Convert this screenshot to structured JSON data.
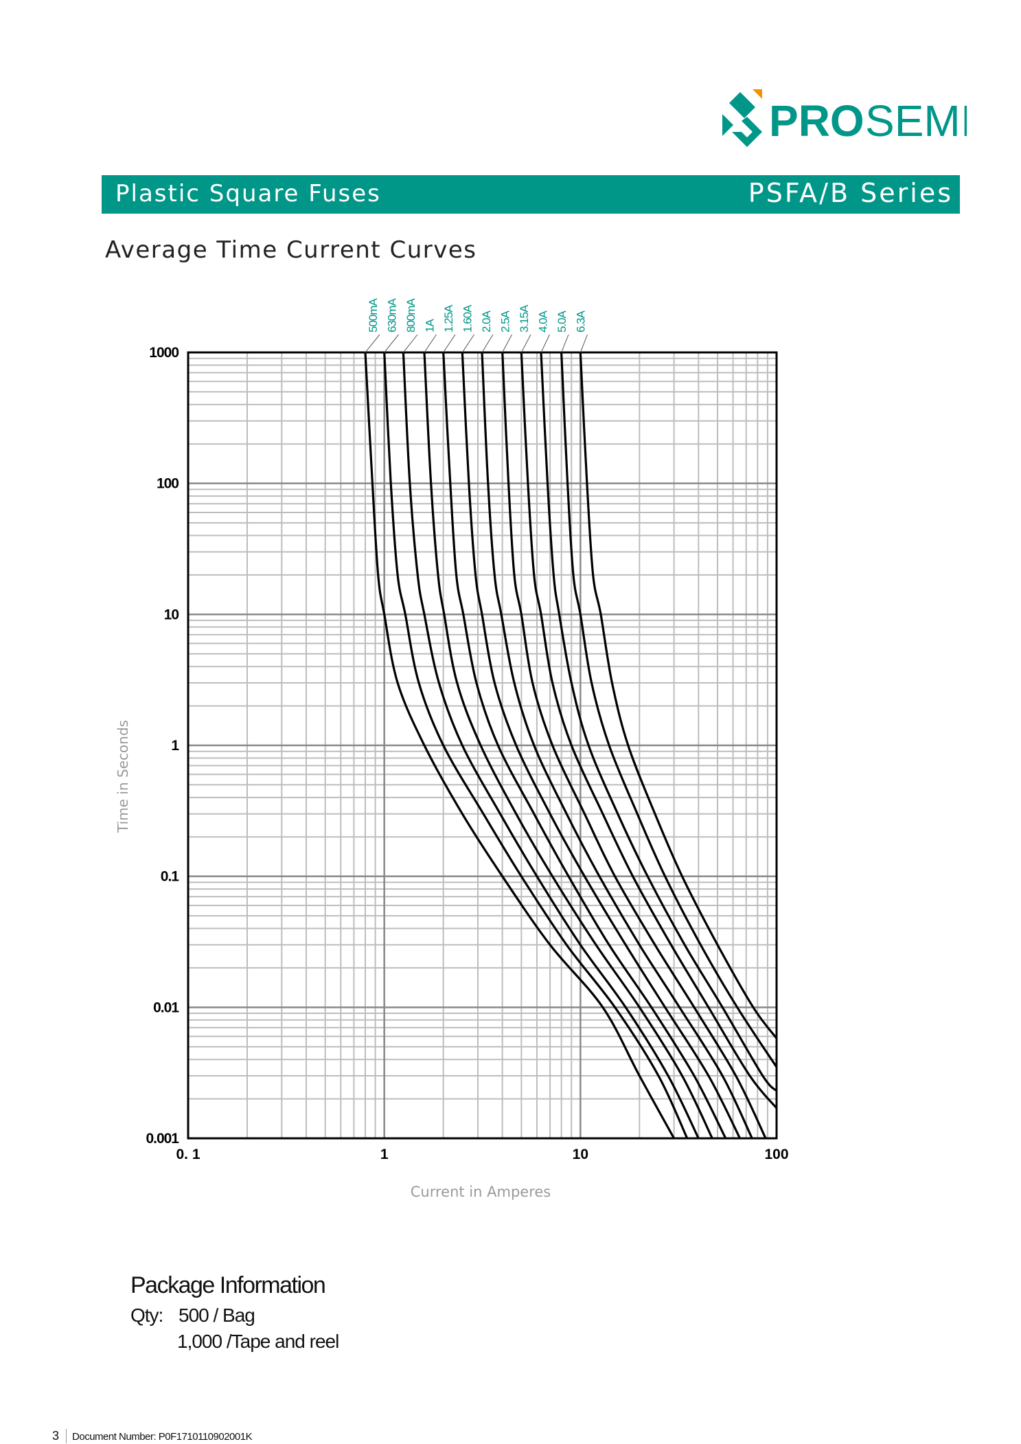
{
  "brand": {
    "name_bold": "PRO",
    "name_light": "SEMI",
    "color": "#009688",
    "accent": "#f39200"
  },
  "header": {
    "left": "Plastic Square Fuses",
    "right": "PSFA/B Series"
  },
  "chart_title": "Average Time Current Curves",
  "chart_data": {
    "type": "line",
    "xlabel": "Current in Amperes",
    "ylabel": "Time in Seconds",
    "x_scale": "log",
    "y_scale": "log",
    "xlim": [
      0.1,
      100
    ],
    "ylim": [
      0.001,
      1000
    ],
    "x_ticks": [
      {
        "value": 0.1,
        "label": "0. 1"
      },
      {
        "value": 1,
        "label": "1"
      },
      {
        "value": 10,
        "label": "10"
      },
      {
        "value": 100,
        "label": "100"
      }
    ],
    "y_ticks": [
      {
        "value": 1000,
        "label": "1000"
      },
      {
        "value": 100,
        "label": "100"
      },
      {
        "value": 10,
        "label": "10"
      },
      {
        "value": 1,
        "label": "1"
      },
      {
        "value": 0.1,
        "label": "0.1"
      },
      {
        "value": 0.01,
        "label": "0.01"
      },
      {
        "value": 0.001,
        "label": "0.001"
      }
    ],
    "grid": true,
    "line_color": "#000000",
    "label_color": "#009688",
    "series": [
      {
        "name": "500mA",
        "points": [
          [
            0.8,
            1000
          ],
          [
            0.87,
            100
          ],
          [
            0.93,
            20
          ],
          [
            1.0,
            10
          ],
          [
            1.17,
            3
          ],
          [
            1.6,
            1
          ],
          [
            2.5,
            0.3
          ],
          [
            4.0,
            0.1
          ],
          [
            7.0,
            0.03
          ],
          [
            13,
            0.01
          ],
          [
            20,
            0.003
          ],
          [
            30,
            0.001
          ]
        ]
      },
      {
        "name": "630mA",
        "points": [
          [
            1.0,
            1000
          ],
          [
            1.08,
            100
          ],
          [
            1.17,
            20
          ],
          [
            1.28,
            10
          ],
          [
            1.5,
            3
          ],
          [
            2.0,
            1
          ],
          [
            3.2,
            0.3
          ],
          [
            5.0,
            0.1
          ],
          [
            8.5,
            0.03
          ],
          [
            15,
            0.01
          ],
          [
            25,
            0.003
          ],
          [
            35,
            0.001
          ]
        ]
      },
      {
        "name": "800mA",
        "points": [
          [
            1.25,
            1000
          ],
          [
            1.35,
            100
          ],
          [
            1.48,
            20
          ],
          [
            1.6,
            10
          ],
          [
            1.9,
            3
          ],
          [
            2.5,
            1
          ],
          [
            3.9,
            0.3
          ],
          [
            6.0,
            0.1
          ],
          [
            10,
            0.03
          ],
          [
            17,
            0.01
          ],
          [
            28,
            0.003
          ],
          [
            40,
            0.001
          ]
        ]
      },
      {
        "name": "1A",
        "points": [
          [
            1.6,
            1000
          ],
          [
            1.73,
            100
          ],
          [
            1.88,
            20
          ],
          [
            2.02,
            10
          ],
          [
            2.35,
            3
          ],
          [
            3.1,
            1
          ],
          [
            4.7,
            0.3
          ],
          [
            7.2,
            0.1
          ],
          [
            12,
            0.03
          ],
          [
            20,
            0.01
          ],
          [
            33,
            0.003
          ],
          [
            47,
            0.001
          ]
        ]
      },
      {
        "name": "1.25A",
        "points": [
          [
            2.0,
            1000
          ],
          [
            2.17,
            100
          ],
          [
            2.33,
            20
          ],
          [
            2.53,
            10
          ],
          [
            2.95,
            3
          ],
          [
            3.8,
            1
          ],
          [
            5.8,
            0.3
          ],
          [
            8.7,
            0.1
          ],
          [
            14,
            0.03
          ],
          [
            23,
            0.01
          ],
          [
            38,
            0.003
          ],
          [
            55,
            0.001
          ]
        ]
      },
      {
        "name": "1.60A",
        "points": [
          [
            2.5,
            1000
          ],
          [
            2.7,
            100
          ],
          [
            2.92,
            20
          ],
          [
            3.15,
            10
          ],
          [
            3.65,
            3
          ],
          [
            4.7,
            1
          ],
          [
            7.0,
            0.3
          ],
          [
            10.5,
            0.1
          ],
          [
            17,
            0.03
          ],
          [
            27,
            0.01
          ],
          [
            45,
            0.003
          ],
          [
            65,
            0.001
          ]
        ]
      },
      {
        "name": "2.0A",
        "points": [
          [
            3.15,
            1000
          ],
          [
            3.38,
            100
          ],
          [
            3.65,
            20
          ],
          [
            3.95,
            10
          ],
          [
            4.6,
            3
          ],
          [
            5.8,
            1
          ],
          [
            8.5,
            0.3
          ],
          [
            12.5,
            0.1
          ],
          [
            20,
            0.03
          ],
          [
            32,
            0.01
          ],
          [
            53,
            0.003
          ],
          [
            75,
            0.001
          ]
        ]
      },
      {
        "name": "2.5A",
        "points": [
          [
            4.0,
            1000
          ],
          [
            4.3,
            100
          ],
          [
            4.6,
            20
          ],
          [
            5.0,
            10
          ],
          [
            5.7,
            3
          ],
          [
            7.2,
            1
          ],
          [
            10.5,
            0.3
          ],
          [
            15,
            0.1
          ],
          [
            24,
            0.03
          ],
          [
            38,
            0.01
          ],
          [
            62,
            0.003
          ],
          [
            88,
            0.001
          ]
        ]
      },
      {
        "name": "3.15A",
        "points": [
          [
            5.0,
            1000
          ],
          [
            5.4,
            100
          ],
          [
            5.8,
            20
          ],
          [
            6.3,
            10
          ],
          [
            7.2,
            3
          ],
          [
            9.0,
            1
          ],
          [
            13,
            0.3
          ],
          [
            18.5,
            0.1
          ],
          [
            29,
            0.03
          ],
          [
            45,
            0.01
          ],
          [
            73,
            0.003
          ],
          [
            100,
            0.0017
          ]
        ]
      },
      {
        "name": "4.0A",
        "points": [
          [
            6.3,
            1000
          ],
          [
            6.8,
            100
          ],
          [
            7.3,
            20
          ],
          [
            7.8,
            10
          ],
          [
            9.0,
            3
          ],
          [
            11,
            1
          ],
          [
            15.5,
            0.3
          ],
          [
            22,
            0.1
          ],
          [
            34,
            0.03
          ],
          [
            53,
            0.01
          ],
          [
            85,
            0.003
          ],
          [
            100,
            0.0023
          ]
        ]
      },
      {
        "name": "5.0A",
        "points": [
          [
            8.0,
            1000
          ],
          [
            8.6,
            100
          ],
          [
            9.2,
            20
          ],
          [
            10,
            10
          ],
          [
            11.4,
            3
          ],
          [
            14,
            1
          ],
          [
            19.5,
            0.3
          ],
          [
            27,
            0.1
          ],
          [
            41,
            0.03
          ],
          [
            63,
            0.01
          ],
          [
            100,
            0.0035
          ]
        ]
      },
      {
        "name": "6.3A",
        "points": [
          [
            10,
            1000
          ],
          [
            10.8,
            100
          ],
          [
            11.6,
            20
          ],
          [
            12.7,
            10
          ],
          [
            14.5,
            3
          ],
          [
            17.5,
            1
          ],
          [
            24,
            0.3
          ],
          [
            33,
            0.1
          ],
          [
            50,
            0.03
          ],
          [
            76,
            0.01
          ],
          [
            100,
            0.0058
          ]
        ]
      }
    ]
  },
  "package": {
    "title": "Package Information",
    "qty_label": "Qty:",
    "qty_line_1": "500 / Bag",
    "qty_line_2": "1,000 /Tape and reel"
  },
  "footer": {
    "page": "3",
    "doc_number": "Document Number: P0F1710110902001K"
  }
}
